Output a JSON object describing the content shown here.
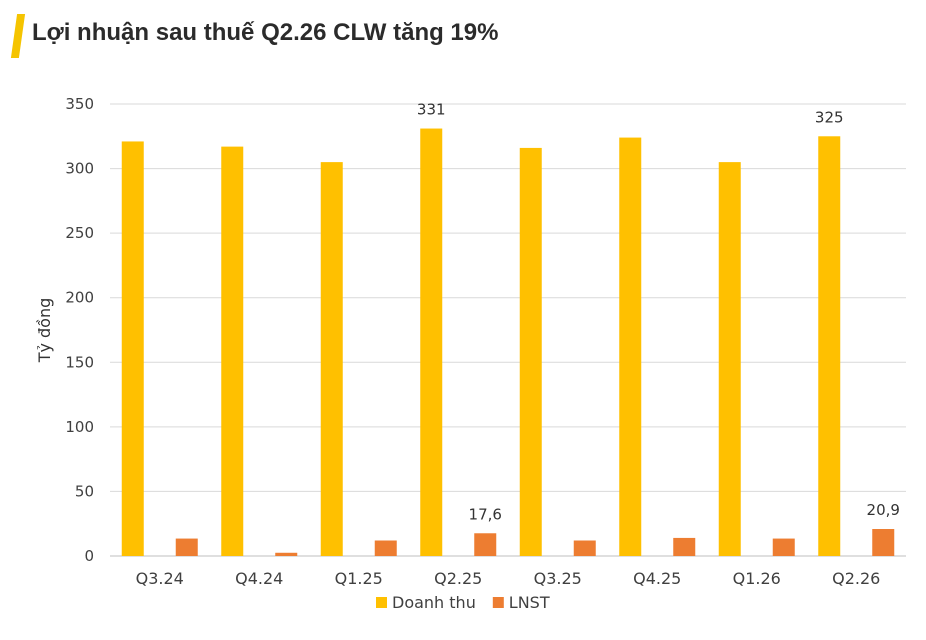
{
  "header": {
    "title": "Lợi nhuận sau thuế Q2.26 CLW tăng 19%"
  },
  "chart_data": {
    "type": "bar",
    "title": "Lợi nhuận sau thuế Q2.26 CLW tăng 19%",
    "xlabel": "",
    "ylabel": "Tỷ đồng",
    "ylim": [
      0,
      350
    ],
    "yticks": [
      0,
      50,
      100,
      150,
      200,
      250,
      300,
      350
    ],
    "grid": true,
    "legend_position": "bottom",
    "categories": [
      "Q3.24",
      "Q4.24",
      "Q1.25",
      "Q2.25",
      "Q3.25",
      "Q4.25",
      "Q1.26",
      "Q2.26"
    ],
    "series": [
      {
        "name": "Doanh thu",
        "color": "#FFC000",
        "values": [
          321,
          317,
          305,
          331,
          316,
          324,
          305,
          325
        ]
      },
      {
        "name": "LNST",
        "color": "#ED7D31",
        "values": [
          13.5,
          2.5,
          12,
          17.6,
          12,
          14,
          13.5,
          20.9
        ]
      }
    ],
    "data_labels": [
      {
        "series": 0,
        "index": 3,
        "text": "331"
      },
      {
        "series": 0,
        "index": 7,
        "text": "325"
      },
      {
        "series": 1,
        "index": 3,
        "text": "17,6"
      },
      {
        "series": 1,
        "index": 7,
        "text": "20,9"
      }
    ]
  }
}
